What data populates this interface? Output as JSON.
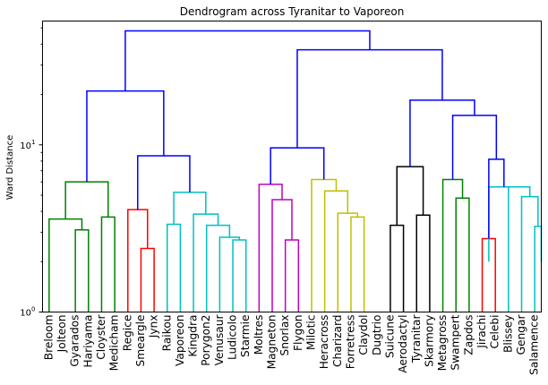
{
  "chart_data": {
    "type": "dendrogram",
    "title": "Dendrogram across Tyranitar to Vaporeon",
    "xlabel": "",
    "ylabel": "Ward Distance",
    "yscale": "log",
    "ylim": [
      1,
      55
    ],
    "yticks": [
      {
        "value": 1,
        "label": "10",
        "sup": "0"
      },
      {
        "value": 10,
        "label": "10",
        "sup": "1"
      }
    ],
    "leaves": [
      "Breloom",
      "Jolteon",
      "Gyarados",
      "Hariyama",
      "Cloyster",
      "Medicham",
      "Regice",
      "Smeargle",
      "Jynx",
      "Raikou",
      "Vaporeon",
      "Kingdra",
      "Porygon2",
      "Venusaur",
      "Ludicolo",
      "Starmie",
      "Moltres",
      "Magneton",
      "Snorlax",
      "Flygon",
      "Milotic",
      "Heracross",
      "Charizard",
      "Forretress",
      "Claydol",
      "Dugtrio",
      "Suicune",
      "Aerodactyl",
      "Tyranitar",
      "Skarmory",
      "Metagross",
      "Swampert",
      "Zapdos",
      "Jirachi",
      "Celebi",
      "Blissey",
      "Gengar",
      "Salamence"
    ],
    "colors": {
      "g": "#008000",
      "r": "#ff0000",
      "c": "#00bfbf",
      "m": "#bf00bf",
      "y": "#bfbf00",
      "k": "#000000",
      "b": "#0000ff"
    },
    "merges": [
      {
        "id": "n1",
        "left": "Gyarados",
        "right": "Hariyama",
        "height": 3.1,
        "color": "g"
      },
      {
        "id": "n2",
        "left": "Breloom",
        "right": "n1",
        "height": 3.6,
        "color": "g"
      },
      {
        "id": "n3",
        "left": "Cloyster",
        "right": "Medicham",
        "height": 3.7,
        "color": "g"
      },
      {
        "id": "n4",
        "left": "n2",
        "right": "n3",
        "height": 6.0,
        "color": "g"
      },
      {
        "id": "n5",
        "left": "Smeargle",
        "right": "Jynx",
        "height": 2.4,
        "color": "r"
      },
      {
        "id": "n6",
        "left": "Regice",
        "right": "n5",
        "height": 4.1,
        "color": "r"
      },
      {
        "id": "n7",
        "left": "Ludicolo",
        "right": "Starmie",
        "height": 2.7,
        "color": "c"
      },
      {
        "id": "n8",
        "left": "Venusaur",
        "right": "n7",
        "height": 2.8,
        "color": "c"
      },
      {
        "id": "n9",
        "left": "Porygon2",
        "right": "n8",
        "height": 3.3,
        "color": "c"
      },
      {
        "id": "n10",
        "left": "Kingdra",
        "right": "n9",
        "height": 3.85,
        "color": "c"
      },
      {
        "id": "n11",
        "left": "Raikou",
        "right": "Vaporeon",
        "height": 3.35,
        "color": "c"
      },
      {
        "id": "n12",
        "left": "n11",
        "right": "n10",
        "height": 5.2,
        "color": "c"
      },
      {
        "id": "n13",
        "left": "n6",
        "right": "n12",
        "height": 8.6,
        "color": "b"
      },
      {
        "id": "n14",
        "left": "n4",
        "right": "n13",
        "height": 21.0,
        "color": "b"
      },
      {
        "id": "n15",
        "left": "Snorlax",
        "right": "Flygon",
        "height": 2.7,
        "color": "m"
      },
      {
        "id": "n16",
        "left": "Magneton",
        "right": "n15",
        "height": 4.7,
        "color": "m"
      },
      {
        "id": "n17",
        "left": "Moltres",
        "right": "n16",
        "height": 5.8,
        "color": "m"
      },
      {
        "id": "n18",
        "left": "Forretress",
        "right": "Claydol",
        "height": 3.7,
        "color": "y"
      },
      {
        "id": "n19",
        "left": "Charizard",
        "right": "n18",
        "height": 3.9,
        "color": "y"
      },
      {
        "id": "n20",
        "left": "Heracross",
        "right": "n19",
        "height": 5.3,
        "color": "y"
      },
      {
        "id": "n21",
        "left": "Milotic",
        "right": "n20",
        "height": 6.2,
        "color": "y"
      },
      {
        "id": "n22",
        "left": "n17",
        "right": "n21",
        "height": 9.6,
        "color": "b"
      },
      {
        "id": "n23",
        "left": "Suicune",
        "right": "Aerodactyl",
        "height": 3.3,
        "color": "k"
      },
      {
        "id": "n24",
        "left": "Tyranitar",
        "right": "Skarmory",
        "height": 3.8,
        "color": "k"
      },
      {
        "id": "n25",
        "left": "n23",
        "right": "n24",
        "height": 7.4,
        "color": "k"
      },
      {
        "id": "n26",
        "left": "Swampert",
        "right": "Zapdos",
        "height": 4.8,
        "color": "g"
      },
      {
        "id": "n27",
        "left": "Metagross",
        "right": "n26",
        "height": 6.2,
        "color": "g"
      },
      {
        "id": "n28",
        "left": "Jirachi",
        "right": "Celebi",
        "height": 2.75,
        "color": "r"
      },
      {
        "id": "n29",
        "left": "Salamence",
        "right": "__end",
        "height": 3.25,
        "color": "c"
      },
      {
        "id": "n30",
        "left": "Gengar",
        "right": "n29",
        "height": 4.9,
        "color": "c"
      },
      {
        "id": "n31",
        "left": "Blissey",
        "right": "n30",
        "height": 5.6,
        "color": "c"
      },
      {
        "id": "n32",
        "left": "__pre",
        "right": "n31",
        "height": 5.6,
        "color": "c"
      },
      {
        "id": "n33",
        "left": "n28",
        "right": "n32",
        "height": 8.2,
        "color": "b"
      },
      {
        "id": "n34",
        "left": "n27",
        "right": "n33",
        "height": 15.0,
        "color": "b"
      },
      {
        "id": "n35",
        "left": "n25",
        "right": "n34",
        "height": 18.5,
        "color": "b"
      },
      {
        "id": "n36",
        "left": "n22",
        "right": "n35",
        "height": 37.0,
        "color": "b"
      },
      {
        "id": "n37",
        "left": "n14",
        "right": "n36",
        "height": 48.0,
        "color": "b"
      }
    ]
  }
}
